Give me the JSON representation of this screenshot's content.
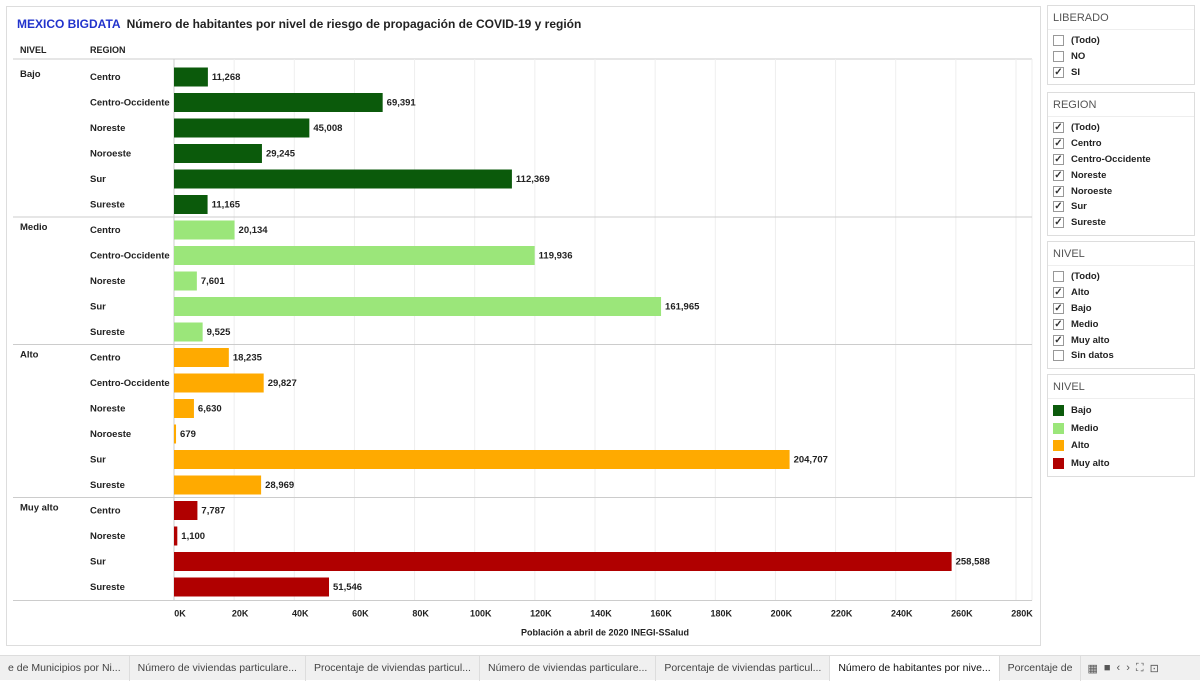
{
  "header": {
    "brand": "MEXICO BIGDATA",
    "title": "Número de habitantes por nivel de riesgo de propagación de COVID-19 y región"
  },
  "chart_data": {
    "type": "bar",
    "orientation": "horizontal",
    "column_headers": [
      "NIVEL",
      "REGION"
    ],
    "xlabel": "Población a abril de 2020 INEGI-SSalud",
    "xlim": [
      0,
      280000
    ],
    "ticks": [
      "0K",
      "20K",
      "40K",
      "60K",
      "80K",
      "100K",
      "120K",
      "140K",
      "160K",
      "180K",
      "200K",
      "220K",
      "240K",
      "260K",
      "280K"
    ],
    "grid": true,
    "groups": [
      {
        "name": "Bajo",
        "color": "#0b5a0b",
        "rows": [
          {
            "region": "Centro",
            "value": 11268,
            "label": "11,268"
          },
          {
            "region": "Centro-Occidente",
            "value": 69391,
            "label": "69,391"
          },
          {
            "region": "Noreste",
            "value": 45008,
            "label": "45,008"
          },
          {
            "region": "Noroeste",
            "value": 29245,
            "label": "29,245"
          },
          {
            "region": "Sur",
            "value": 112369,
            "label": "112,369"
          },
          {
            "region": "Sureste",
            "value": 11165,
            "label": "11,165"
          }
        ]
      },
      {
        "name": "Medio",
        "color": "#9be67a",
        "rows": [
          {
            "region": "Centro",
            "value": 20134,
            "label": "20,134"
          },
          {
            "region": "Centro-Occidente",
            "value": 119936,
            "label": "119,936"
          },
          {
            "region": "Noreste",
            "value": 7601,
            "label": "7,601"
          },
          {
            "region": "Sur",
            "value": 161965,
            "label": "161,965"
          },
          {
            "region": "Sureste",
            "value": 9525,
            "label": "9,525"
          }
        ]
      },
      {
        "name": "Alto",
        "color": "#ffaa00",
        "rows": [
          {
            "region": "Centro",
            "value": 18235,
            "label": "18,235"
          },
          {
            "region": "Centro-Occidente",
            "value": 29827,
            "label": "29,827"
          },
          {
            "region": "Noreste",
            "value": 6630,
            "label": "6,630"
          },
          {
            "region": "Noroeste",
            "value": 679,
            "label": "679"
          },
          {
            "region": "Sur",
            "value": 204707,
            "label": "204,707"
          },
          {
            "region": "Sureste",
            "value": 28969,
            "label": "28,969"
          }
        ]
      },
      {
        "name": "Muy alto",
        "color": "#b00000",
        "rows": [
          {
            "region": "Centro",
            "value": 7787,
            "label": "7,787"
          },
          {
            "region": "Noreste",
            "value": 1100,
            "label": "1,100"
          },
          {
            "region": "Sur",
            "value": 258588,
            "label": "258,588"
          },
          {
            "region": "Sureste",
            "value": 51546,
            "label": "51,546"
          }
        ]
      }
    ]
  },
  "filters": [
    {
      "title": "LIBERADO",
      "items": [
        {
          "label": "(Todo)",
          "checked": false
        },
        {
          "label": "NO",
          "checked": false
        },
        {
          "label": "SI",
          "checked": true
        }
      ]
    },
    {
      "title": "REGION",
      "items": [
        {
          "label": "(Todo)",
          "checked": true
        },
        {
          "label": "Centro",
          "checked": true
        },
        {
          "label": "Centro-Occidente",
          "checked": true
        },
        {
          "label": "Noreste",
          "checked": true
        },
        {
          "label": "Noroeste",
          "checked": true
        },
        {
          "label": "Sur",
          "checked": true
        },
        {
          "label": "Sureste",
          "checked": true
        }
      ]
    },
    {
      "title": "NIVEL",
      "items": [
        {
          "label": "(Todo)",
          "checked": false
        },
        {
          "label": "Alto",
          "checked": true
        },
        {
          "label": "Bajo",
          "checked": true
        },
        {
          "label": "Medio",
          "checked": true
        },
        {
          "label": "Muy alto",
          "checked": true
        },
        {
          "label": "Sin datos",
          "checked": false
        }
      ]
    }
  ],
  "legend": {
    "title": "NIVEL",
    "items": [
      {
        "label": "Bajo",
        "color": "#0b5a0b"
      },
      {
        "label": "Medio",
        "color": "#9be67a"
      },
      {
        "label": "Alto",
        "color": "#ffaa00"
      },
      {
        "label": "Muy alto",
        "color": "#b00000"
      }
    ]
  },
  "tabs": [
    "e de Municipios por Ni...",
    "Número de viviendas particulare...",
    "Procentaje de viviendas particul...",
    "Número de viviendas particulare...",
    "Porcentaje de viviendas particul...",
    "Número de habitantes por nive...",
    "Porcentaje de"
  ],
  "active_tab": 5
}
